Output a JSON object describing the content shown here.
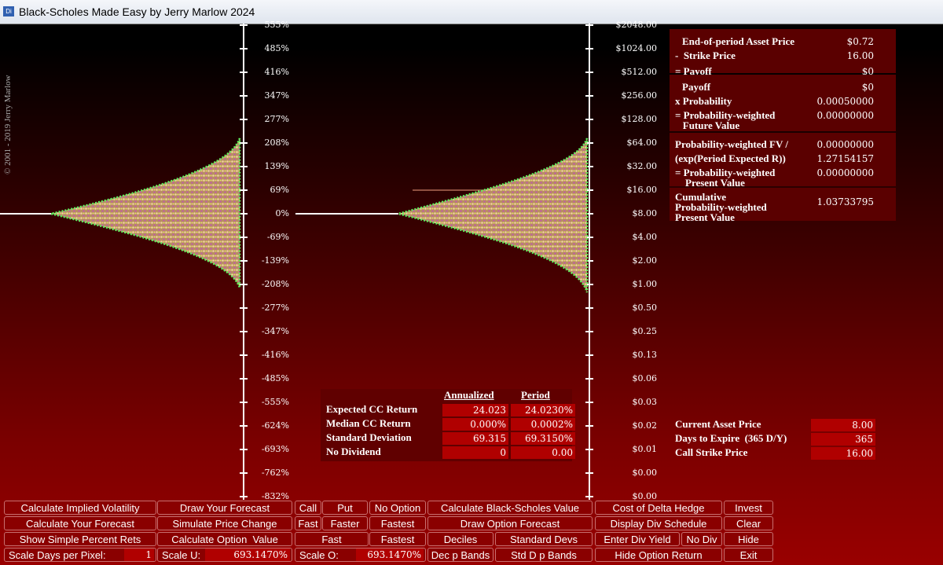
{
  "window": {
    "icon": "Di",
    "title": "Black-Scholes Made Easy by Jerry Marlow  2024"
  },
  "copyright": "© 2001 - 2019   Jerry Marlow",
  "return_axis": {
    "labels": [
      "555%",
      "485%",
      "416%",
      "347%",
      "277%",
      "208%",
      "139%",
      "69%",
      "0%",
      "-69%",
      "-139%",
      "-208%",
      "-277%",
      "-347%",
      "-416%",
      "-485%",
      "-555%",
      "-624%",
      "-693%",
      "-762%",
      "-832%"
    ]
  },
  "price_axis": {
    "labels": [
      "$2048.00",
      "$1024.00",
      "$512.00",
      "$256.00",
      "$128.00",
      "$64.00",
      "$32.00",
      "$16.00",
      "$8.00",
      "$4.00",
      "$2.00",
      "$1.00",
      "$0.50",
      "$0.25",
      "$0.13",
      "$0.06",
      "$0.03",
      "$0.02",
      "$0.01",
      "$0.00",
      "$0.00"
    ]
  },
  "calculation_panel": {
    "sections": [
      [
        {
          "label": "End-of-period Asset Price",
          "value": "$0.72"
        },
        {
          "label": "-  Strike Price",
          "value": "16.00"
        },
        {
          "label": "= Payoff",
          "value": "$0"
        }
      ],
      [
        {
          "label": "Payoff",
          "value": "$0"
        },
        {
          "label": "x Probability",
          "value": "0.00050000"
        },
        {
          "label": "= Probability-weighted\n   Future Value",
          "value": "0.00000000"
        }
      ],
      [
        {
          "label": "Probability-weighted FV /",
          "value": "0.00000000"
        },
        {
          "label": "(exp(Period Expected R))",
          "value": "1.27154157"
        },
        {
          "label": "= Probability-weighted\n    Present Value",
          "value": "0.00000000"
        }
      ],
      [
        {
          "label": "Cumulative\nProbability-weighted\nPresent Value",
          "value": "1.03733795"
        }
      ]
    ]
  },
  "stats_table": {
    "headers": [
      "Annualized",
      "Period"
    ],
    "rows": [
      {
        "label": "Expected CC Return",
        "annualized": "24.023",
        "period": "24.0230%"
      },
      {
        "label": "Median CC Return",
        "annualized": "0.000%",
        "period": "0.0002%"
      },
      {
        "label": "Standard Deviation",
        "annualized": "69.315",
        "period": "69.3150%"
      },
      {
        "label": "No Dividend",
        "annualized": "0",
        "period": "0.00"
      }
    ]
  },
  "inputs": [
    {
      "label": "Current Asset Price",
      "value": "8.00"
    },
    {
      "label": "Days to Expire  (365 D/Y)",
      "value": "365"
    },
    {
      "label": "Call Strike Price",
      "value": "16.00"
    }
  ],
  "buttons": {
    "rows": [
      [
        "Calculate Implied Volatility",
        "Draw Your Forecast",
        "Call",
        "Put",
        "No Option",
        "Calculate Black-Scholes Value",
        "Cost of Delta Hedge",
        "Invest"
      ],
      [
        "Calculate Your Forecast",
        "Simulate Price Change",
        "Fast",
        "Faster",
        "Fastest",
        "Draw Option Forecast",
        "Display Div Schedule",
        "Clear"
      ],
      [
        "Show Simple Percent Rets",
        "Calculate Option  Value",
        "Fast",
        "Fastest",
        "Deciles",
        "Standard Devs",
        "Enter Div Yield",
        "No Div",
        "Hide"
      ],
      [
        {
          "label": "Scale Days per Pixel:",
          "value": "1"
        },
        {
          "label": "Scale U:",
          "value": "693.1470%"
        },
        {
          "label": "Scale O:",
          "value": "693.1470%"
        },
        "Dec p Bands",
        "Std D p Bands",
        "Hide Option Return",
        "Exit"
      ]
    ]
  }
}
